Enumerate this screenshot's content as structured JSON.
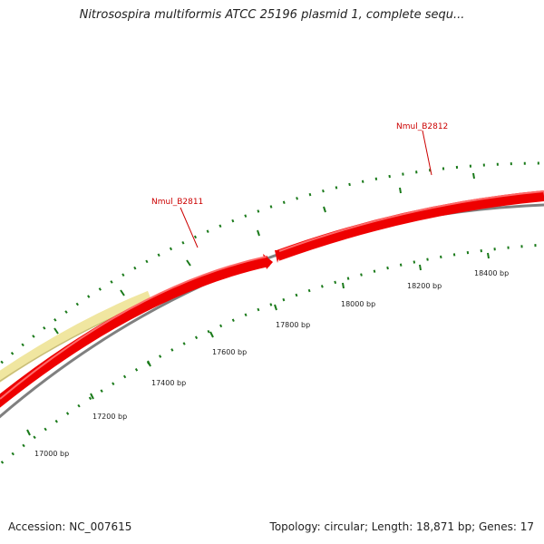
{
  "title": "Nitrosospira multiformis ATCC 25196 plasmid 1, complete sequ...",
  "footer": {
    "accession": "Accession: NC_007615",
    "summary": "Topology: circular; Length: 18,871 bp; Genes: 17"
  },
  "genes": [
    {
      "label": "Nmul_B2811",
      "color": "#ee0000"
    },
    {
      "label": "Nmul_B2812",
      "color": "#ee0000"
    }
  ],
  "ticks": [
    {
      "label": "17000 bp"
    },
    {
      "label": "17200 bp"
    },
    {
      "label": "17400 bp"
    },
    {
      "label": "17600 bp"
    },
    {
      "label": "17800 bp"
    },
    {
      "label": "18000 bp"
    },
    {
      "label": "18200 bp"
    },
    {
      "label": "18400 bp"
    }
  ],
  "colors": {
    "gene": "#ee0000",
    "other_feature": "#f0e6a0",
    "backbone": "#808080",
    "tick": "#1a7a1a",
    "label": "#cc0000"
  }
}
